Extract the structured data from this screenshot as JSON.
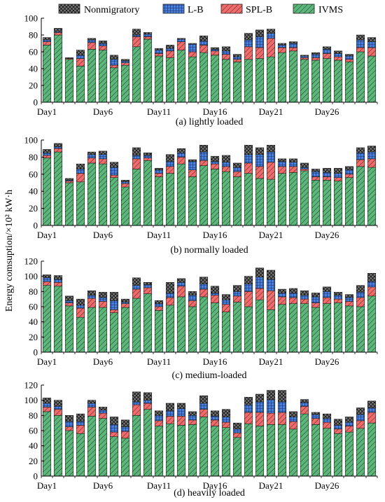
{
  "colors": {
    "IVMS": "#5cb87a",
    "SPL-B": "#f26b6b",
    "L-B": "#4d7fd6",
    "Nonmigratory": "#7a7a7a"
  },
  "legend": [
    "Nonmigratory",
    "L-B",
    "SPL-B",
    "IVMS"
  ],
  "y_axis_label": "Energy comsuption/×10² kW·h",
  "chart_data": [
    {
      "type": "bar",
      "stacked": true,
      "caption": "(a) lightly loaded",
      "ylim": [
        0,
        100
      ],
      "yticks": [
        0,
        20,
        40,
        60,
        80,
        100
      ],
      "x": [
        1,
        2,
        3,
        4,
        5,
        6,
        7,
        8,
        9,
        10,
        11,
        12,
        13,
        14,
        15,
        16,
        17,
        18,
        19,
        20,
        21,
        22,
        23,
        24,
        25,
        26,
        27,
        28,
        29,
        30
      ],
      "xtick_labels": [
        "Day1",
        "Day6",
        "Day11",
        "Day16",
        "Day21",
        "Day26"
      ],
      "xtick_positions": [
        1,
        6,
        11,
        16,
        21,
        26
      ],
      "series": [
        {
          "name": "IVMS",
          "values": [
            68,
            80,
            51,
            43,
            63,
            62,
            41,
            44,
            66,
            75,
            55,
            53,
            62,
            54,
            59,
            56,
            51,
            48,
            51,
            52,
            54,
            59,
            61,
            51,
            50,
            52,
            50,
            48,
            60,
            55
          ]
        },
        {
          "name": "SPL-B",
          "values": [
            4,
            3,
            1,
            9,
            8,
            5,
            3,
            3,
            12,
            3,
            3,
            8,
            10,
            6,
            9,
            5,
            6,
            3,
            15,
            13,
            22,
            6,
            4,
            2,
            3,
            6,
            4,
            3,
            5,
            10
          ]
        },
        {
          "name": "L-B",
          "values": [
            2,
            1,
            0,
            4,
            3,
            3,
            7,
            2,
            2,
            3,
            4,
            3,
            3,
            9,
            5,
            2,
            4,
            3,
            8,
            13,
            6,
            3,
            5,
            2,
            4,
            5,
            4,
            4,
            9,
            7
          ]
        },
        {
          "name": "Nonmigratory",
          "values": [
            3,
            4,
            1,
            6,
            2,
            3,
            5,
            2,
            7,
            2,
            2,
            4,
            1,
            1,
            6,
            2,
            5,
            3,
            8,
            8,
            5,
            2,
            2,
            1,
            2,
            3,
            3,
            2,
            6,
            5
          ]
        }
      ]
    },
    {
      "type": "bar",
      "stacked": true,
      "caption": "(b) normally loaded",
      "ylim": [
        0,
        100
      ],
      "yticks": [
        0,
        20,
        40,
        60,
        80,
        100
      ],
      "x": [
        1,
        2,
        3,
        4,
        5,
        6,
        7,
        8,
        9,
        10,
        11,
        12,
        13,
        14,
        15,
        16,
        17,
        18,
        19,
        20,
        21,
        22,
        23,
        24,
        25,
        26,
        27,
        28,
        29,
        30
      ],
      "xtick_labels": [
        "Day1",
        "Day6",
        "Day11",
        "Day16",
        "Day21",
        "Day26"
      ],
      "xtick_positions": [
        1,
        6,
        11,
        16,
        21,
        26
      ],
      "series": [
        {
          "name": "IVMS",
          "values": [
            79,
            86,
            50,
            51,
            73,
            72,
            56,
            45,
            66,
            76,
            57,
            61,
            72,
            57,
            70,
            66,
            63,
            57,
            61,
            55,
            54,
            61,
            62,
            64,
            53,
            53,
            52,
            56,
            69,
            68
          ]
        },
        {
          "name": "SPL-B",
          "values": [
            3,
            4,
            2,
            10,
            6,
            6,
            3,
            4,
            12,
            3,
            4,
            8,
            8,
            8,
            6,
            6,
            6,
            6,
            12,
            14,
            20,
            8,
            7,
            2,
            4,
            4,
            4,
            4,
            8,
            10
          ]
        },
        {
          "name": "L-B",
          "values": [
            3,
            2,
            1,
            5,
            4,
            5,
            9,
            2,
            4,
            3,
            4,
            6,
            5,
            10,
            10,
            3,
            5,
            5,
            10,
            14,
            12,
            6,
            5,
            2,
            6,
            5,
            5,
            5,
            8,
            8
          ]
        },
        {
          "name": "Nonmigratory",
          "values": [
            4,
            4,
            2,
            6,
            3,
            4,
            6,
            2,
            9,
            3,
            2,
            8,
            5,
            2,
            8,
            6,
            8,
            5,
            11,
            8,
            8,
            3,
            4,
            5,
            3,
            5,
            6,
            4,
            6,
            7
          ]
        }
      ]
    },
    {
      "type": "bar",
      "stacked": true,
      "caption": "(c) medium-loaded",
      "ylim": [
        0,
        120
      ],
      "yticks": [
        0,
        20,
        40,
        60,
        80,
        100,
        120
      ],
      "x": [
        1,
        2,
        3,
        4,
        5,
        6,
        7,
        8,
        9,
        10,
        11,
        12,
        13,
        14,
        15,
        16,
        17,
        18,
        19,
        20,
        21,
        22,
        23,
        24,
        25,
        26,
        27,
        28,
        29,
        30
      ],
      "xtick_labels": [
        "Day1",
        "Day6",
        "Day11",
        "Day16",
        "Day21",
        "Day26"
      ],
      "xtick_positions": [
        1,
        6,
        11,
        16,
        21,
        26
      ],
      "series": [
        {
          "name": "IVMS",
          "values": [
            88,
            87,
            61,
            46,
            59,
            59,
            52,
            59,
            71,
            77,
            55,
            62,
            73,
            60,
            73,
            65,
            53,
            66,
            60,
            69,
            56,
            63,
            64,
            64,
            59,
            64,
            65,
            61,
            60,
            74
          ]
        },
        {
          "name": "SPL-B",
          "values": [
            5,
            5,
            4,
            12,
            12,
            8,
            4,
            5,
            12,
            8,
            5,
            10,
            14,
            8,
            10,
            10,
            10,
            8,
            20,
            15,
            25,
            10,
            8,
            6,
            6,
            8,
            5,
            6,
            12,
            12
          ]
        },
        {
          "name": "L-B",
          "values": [
            5,
            4,
            3,
            4,
            4,
            5,
            12,
            2,
            5,
            4,
            4,
            6,
            5,
            7,
            7,
            3,
            6,
            6,
            10,
            15,
            15,
            5,
            6,
            5,
            8,
            8,
            5,
            5,
            7,
            7
          ]
        },
        {
          "name": "Nonmigratory",
          "values": [
            4,
            5,
            6,
            8,
            6,
            7,
            11,
            4,
            10,
            3,
            4,
            14,
            5,
            5,
            9,
            9,
            7,
            8,
            10,
            12,
            12,
            5,
            6,
            6,
            5,
            6,
            4,
            4,
            9,
            11
          ]
        }
      ]
    },
    {
      "type": "bar",
      "stacked": true,
      "caption": "(d) heavily loaded",
      "ylim": [
        0,
        120
      ],
      "yticks": [
        0,
        20,
        40,
        60,
        80,
        100,
        120
      ],
      "x": [
        1,
        2,
        3,
        4,
        5,
        6,
        7,
        8,
        9,
        10,
        11,
        12,
        13,
        14,
        15,
        16,
        17,
        18,
        19,
        20,
        21,
        22,
        23,
        24,
        25,
        26,
        27,
        28,
        29,
        30
      ],
      "xtick_labels": [
        "Day1",
        "Day6",
        "Day11",
        "Day16",
        "Day21",
        "Day26"
      ],
      "xtick_positions": [
        1,
        6,
        11,
        16,
        21,
        26
      ],
      "series": [
        {
          "name": "IVMS",
          "values": [
            85,
            80,
            60,
            56,
            79,
            76,
            52,
            50,
            80,
            88,
            66,
            69,
            67,
            68,
            78,
            66,
            64,
            51,
            69,
            66,
            68,
            68,
            62,
            82,
            68,
            63,
            56,
            58,
            63,
            70
          ]
        },
        {
          "name": "SPL-B",
          "values": [
            6,
            8,
            5,
            11,
            12,
            7,
            6,
            9,
            14,
            8,
            7,
            10,
            12,
            6,
            10,
            8,
            7,
            6,
            15,
            18,
            15,
            16,
            10,
            10,
            8,
            8,
            6,
            8,
            10,
            14
          ]
        },
        {
          "name": "L-B",
          "values": [
            5,
            4,
            7,
            5,
            5,
            4,
            10,
            6,
            4,
            4,
            7,
            7,
            10,
            6,
            8,
            5,
            7,
            5,
            10,
            14,
            18,
            14,
            6,
            5,
            5,
            5,
            5,
            5,
            8,
            6
          ]
        },
        {
          "name": "Nonmigratory",
          "values": [
            7,
            8,
            8,
            10,
            4,
            4,
            10,
            9,
            13,
            10,
            6,
            10,
            7,
            5,
            10,
            7,
            10,
            8,
            10,
            10,
            12,
            15,
            7,
            4,
            3,
            6,
            8,
            7,
            9,
            9
          ]
        }
      ]
    }
  ]
}
